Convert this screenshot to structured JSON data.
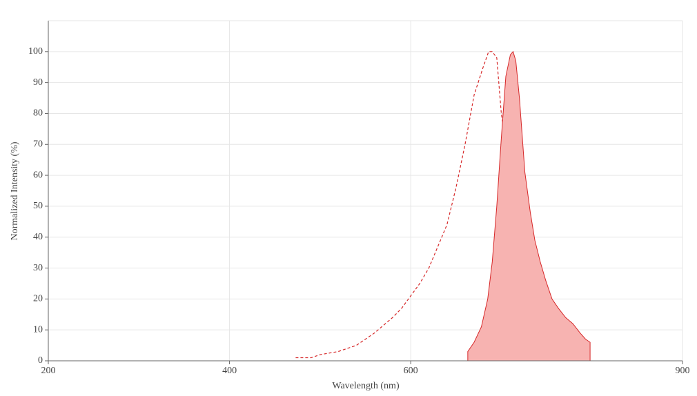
{
  "chart_data": {
    "type": "line",
    "x_label": "Wavelength (nm)",
    "y_label": "Normalized Intensity (%)",
    "xlim": [
      200,
      900
    ],
    "xticks": [
      200,
      400,
      600,
      900
    ],
    "ylim": [
      0,
      110
    ],
    "yticks": [
      0,
      10,
      20,
      30,
      40,
      50,
      60,
      70,
      80,
      90,
      100
    ],
    "grid": true,
    "series": [
      {
        "color": "#d62728",
        "dashed": true,
        "filled": false,
        "x": [
          473,
          490,
          500,
          520,
          540,
          560,
          580,
          590,
          600,
          610,
          620,
          630,
          640,
          650,
          660,
          670,
          680,
          686,
          690,
          695,
          700,
          705,
          710,
          715,
          720,
          726,
          732,
          737,
          743,
          749,
          756,
          768
        ],
        "values": [
          1,
          1,
          2,
          3,
          5,
          9,
          14,
          17,
          21,
          25,
          30,
          37,
          44,
          56,
          70,
          86,
          95,
          100,
          100,
          98,
          80,
          70,
          60,
          45,
          30,
          18,
          9,
          6,
          3,
          2,
          1,
          1
        ]
      },
      {
        "color": "#d62728",
        "dashed": false,
        "filled": true,
        "fill": "#f7b3b1",
        "x": [
          663,
          670,
          678,
          685,
          690,
          695,
          700,
          705,
          710,
          713,
          716,
          720,
          726,
          732,
          737,
          743,
          749,
          756,
          763,
          771,
          779,
          787,
          793,
          798
        ],
        "values": [
          3,
          6,
          11,
          20,
          32,
          50,
          72,
          92,
          99,
          100,
          97,
          85,
          61,
          48,
          39,
          32,
          26,
          20,
          17,
          14,
          12,
          9,
          7,
          6
        ]
      }
    ]
  }
}
